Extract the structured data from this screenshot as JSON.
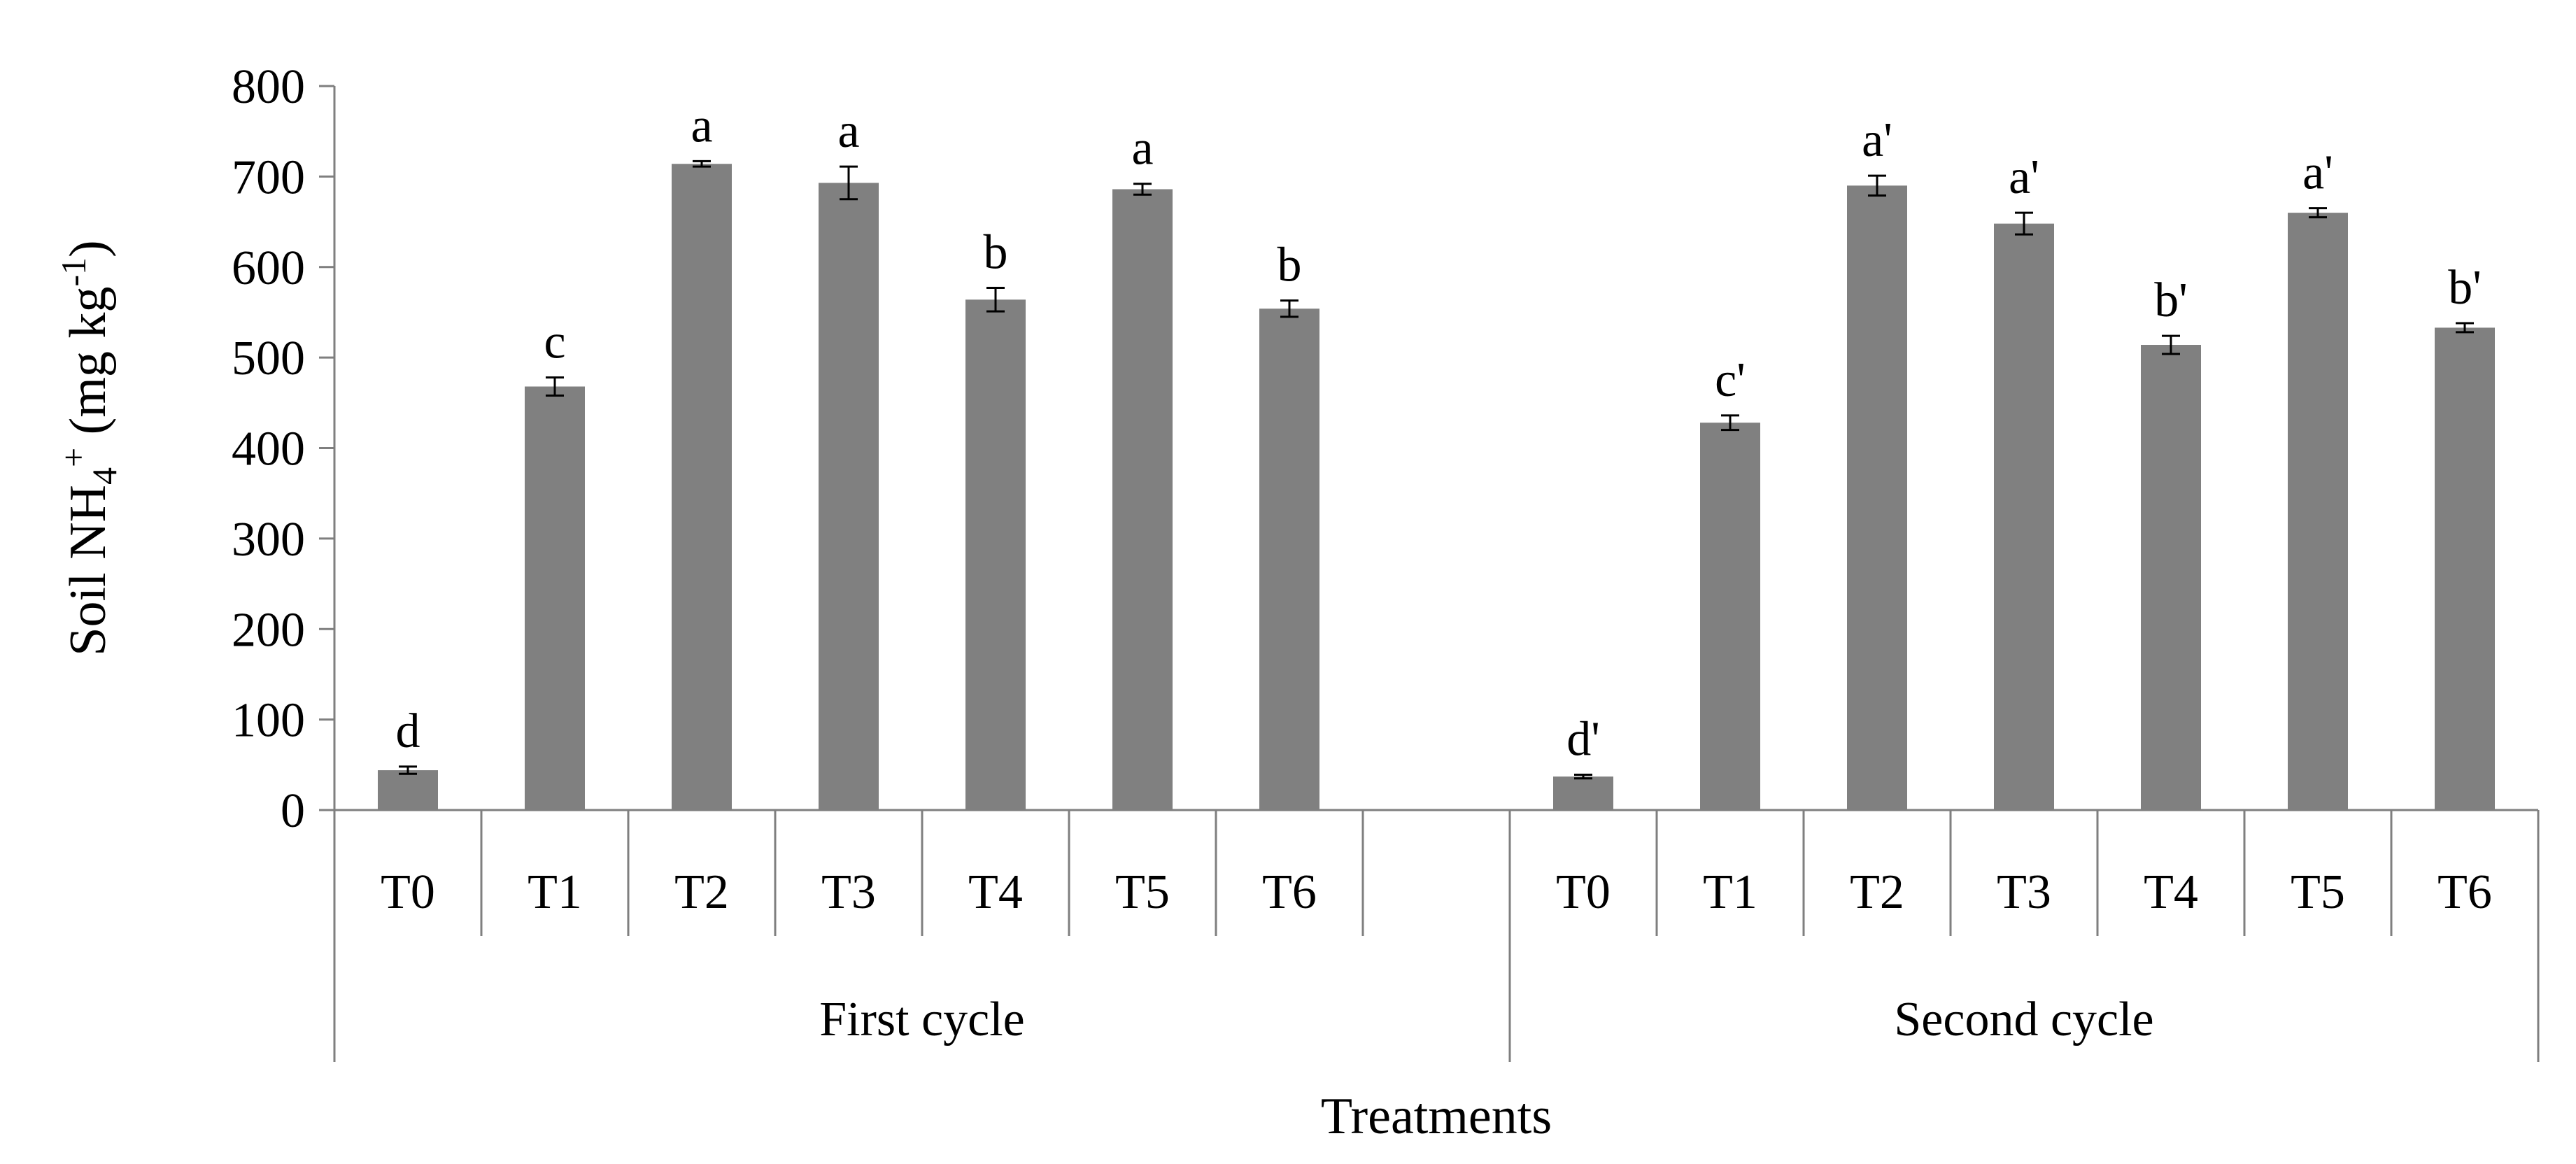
{
  "chart_data": {
    "type": "bar",
    "ylabel": {
      "prefix": "Soil NH",
      "sub": "4",
      "sup": "+",
      "unit_open": " (mg kg",
      "unit_exp": "-1",
      "unit_close": ")"
    },
    "xlabel": "Treatments",
    "ylim": [
      0,
      800
    ],
    "yticks": [
      0,
      100,
      200,
      300,
      400,
      500,
      600,
      700,
      800
    ],
    "grid": false,
    "groups": [
      {
        "name": "First cycle",
        "categories": [
          "T0",
          "T1",
          "T2",
          "T3",
          "T4",
          "T5",
          "T6",
          ""
        ],
        "values": [
          44,
          468,
          714,
          693,
          564,
          686,
          554,
          null
        ],
        "errors": [
          4,
          10,
          3,
          18,
          13,
          6,
          9,
          null
        ],
        "letters": [
          "d",
          "c",
          "a",
          "a",
          "b",
          "a",
          "b",
          ""
        ]
      },
      {
        "name": "Second cycle",
        "categories": [
          "T0",
          "T1",
          "T2",
          "T3",
          "T4",
          "T5",
          "T6"
        ],
        "values": [
          37,
          428,
          690,
          648,
          514,
          660,
          533
        ],
        "errors": [
          2,
          8,
          11,
          12,
          10,
          5,
          5
        ],
        "letters": [
          "d'",
          "c'",
          "a'",
          "a'",
          "b'",
          "a'",
          "b'"
        ]
      }
    ],
    "colors": {
      "bar": "#808080",
      "axis": "#7f7f7f",
      "error": "#000000"
    }
  }
}
